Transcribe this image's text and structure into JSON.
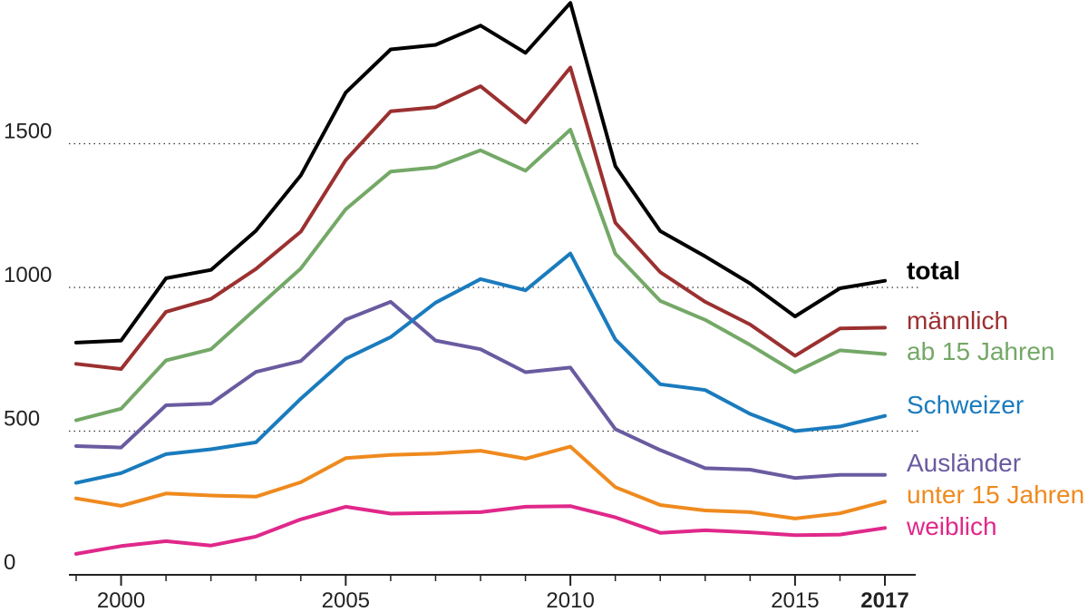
{
  "chart_data": {
    "type": "line",
    "x": [
      1999,
      2000,
      2001,
      2002,
      2003,
      2004,
      2005,
      2006,
      2007,
      2008,
      2009,
      2010,
      2011,
      2012,
      2013,
      2014,
      2015,
      2016,
      2017
    ],
    "xlim": [
      1999,
      2017
    ],
    "ylim": [
      0,
      2000
    ],
    "x_ticks": [
      {
        "value": 2000,
        "label": "2000",
        "bold": false
      },
      {
        "value": 2005,
        "label": "2005",
        "bold": false
      },
      {
        "value": 2010,
        "label": "2010",
        "bold": false
      },
      {
        "value": 2015,
        "label": "2015",
        "bold": false
      },
      {
        "value": 2017,
        "label": "2017",
        "bold": true
      }
    ],
    "y_ticks": [
      {
        "value": 0,
        "label": "0",
        "grid": false
      },
      {
        "value": 500,
        "label": "500",
        "grid": true
      },
      {
        "value": 1000,
        "label": "1000",
        "grid": true
      },
      {
        "value": 1500,
        "label": "1500",
        "grid": true
      }
    ],
    "grid": "dotted horizontal",
    "legend": "direct labels at line ends (right)",
    "series": [
      {
        "name": "total",
        "color": "#000000",
        "bold": true,
        "values": [
          808,
          815,
          1032,
          1061,
          1197,
          1390,
          1678,
          1828,
          1844,
          1911,
          1816,
          1990,
          1422,
          1196,
          1108,
          1014,
          899,
          997,
          1023
        ]
      },
      {
        "name": "männlich",
        "color": "#9b3030",
        "bold": false,
        "values": [
          734,
          716,
          915,
          960,
          1064,
          1194,
          1443,
          1613,
          1627,
          1700,
          1574,
          1765,
          1225,
          1053,
          950,
          871,
          762,
          857,
          860
        ]
      },
      {
        "name": "ab 15 Jahren",
        "color": "#74a867",
        "bold": false,
        "values": [
          538,
          578,
          746,
          785,
          926,
          1066,
          1272,
          1403,
          1418,
          1477,
          1406,
          1549,
          1117,
          953,
          887,
          800,
          705,
          781,
          768
        ]
      },
      {
        "name": "Schweizer",
        "color": "#1a7bbd",
        "bold": false,
        "values": [
          320,
          354,
          420,
          437,
          461,
          613,
          752,
          827,
          947,
          1029,
          990,
          1118,
          819,
          663,
          643,
          560,
          500,
          516,
          553
        ]
      },
      {
        "name": "Ausländer",
        "color": "#6a5ba0",
        "bold": false,
        "values": [
          448,
          443,
          590,
          596,
          706,
          744,
          888,
          950,
          815,
          785,
          705,
          721,
          507,
          434,
          371,
          366,
          337,
          348,
          348
        ]
      },
      {
        "name": "unter 15 Jahren",
        "color": "#ef8a1e",
        "bold": false,
        "values": [
          266,
          240,
          283,
          276,
          272,
          322,
          406,
          417,
          422,
          432,
          404,
          446,
          305,
          243,
          224,
          218,
          196,
          214,
          255
        ]
      },
      {
        "name": "weiblich",
        "color": "#e0288a",
        "bold": false,
        "values": [
          73,
          100,
          117,
          102,
          133,
          193,
          237,
          213,
          215,
          218,
          237,
          239,
          200,
          146,
          155,
          148,
          138,
          140,
          163
        ]
      }
    ]
  }
}
